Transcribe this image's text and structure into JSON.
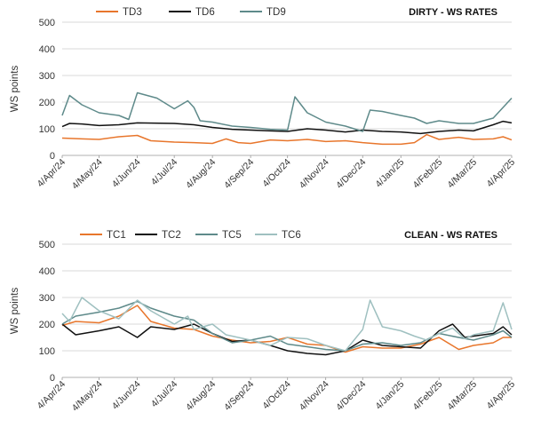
{
  "chart_data": [
    {
      "type": "line",
      "title": "DIRTY - WS RATES",
      "ylabel": "WS points",
      "xlabel": "",
      "ylim": [
        0,
        500
      ],
      "yticks": [
        0,
        100,
        200,
        300,
        400,
        500
      ],
      "x_start": "4/Apr/24",
      "x_end": "4/Apr/25",
      "x_tick_labels": [
        "4/Apr/24",
        "4/May/24",
        "4/Jun/24",
        "4/Jul/24",
        "4/Aug/24",
        "4/Sep/24",
        "4/Oct/24",
        "4/Nov/24",
        "4/Dec/24",
        "4/Jan/25",
        "4/Feb/25",
        "4/Mar/25",
        "4/Apr/25"
      ],
      "legend_position": "top-left",
      "grid": true,
      "series": [
        {
          "name": "TD3",
          "color": "#e8762c",
          "points": [
            [
              "4/Apr/24",
              65
            ],
            [
              "20/Apr/24",
              62
            ],
            [
              "4/May/24",
              60
            ],
            [
              "20/May/24",
              70
            ],
            [
              "4/Jun/24",
              75
            ],
            [
              "15/Jun/24",
              55
            ],
            [
              "4/Jul/24",
              50
            ],
            [
              "20/Jul/24",
              48
            ],
            [
              "4/Aug/24",
              45
            ],
            [
              "15/Aug/24",
              62
            ],
            [
              "25/Aug/24",
              48
            ],
            [
              "4/Sep/24",
              45
            ],
            [
              "20/Sep/24",
              58
            ],
            [
              "4/Oct/24",
              55
            ],
            [
              "20/Oct/24",
              60
            ],
            [
              "4/Nov/24",
              52
            ],
            [
              "20/Nov/24",
              55
            ],
            [
              "4/Dec/24",
              48
            ],
            [
              "20/Dec/24",
              42
            ],
            [
              "4/Jan/25",
              42
            ],
            [
              "15/Jan/25",
              48
            ],
            [
              "25/Jan/25",
              78
            ],
            [
              "4/Feb/25",
              60
            ],
            [
              "20/Feb/25",
              68
            ],
            [
              "4/Mar/25",
              60
            ],
            [
              "20/Mar/25",
              62
            ],
            [
              "28/Mar/25",
              70
            ],
            [
              "4/Apr/25",
              58
            ]
          ]
        },
        {
          "name": "TD6",
          "color": "#111111",
          "points": [
            [
              "4/Apr/24",
              108
            ],
            [
              "10/Apr/24",
              120
            ],
            [
              "20/Apr/24",
              118
            ],
            [
              "4/May/24",
              112
            ],
            [
              "20/May/24",
              115
            ],
            [
              "4/Jun/24",
              122
            ],
            [
              "4/Jul/24",
              120
            ],
            [
              "20/Jul/24",
              115
            ],
            [
              "4/Aug/24",
              105
            ],
            [
              "20/Aug/24",
              98
            ],
            [
              "4/Sep/24",
              95
            ],
            [
              "20/Sep/24",
              92
            ],
            [
              "4/Oct/24",
              90
            ],
            [
              "20/Oct/24",
              100
            ],
            [
              "4/Nov/24",
              95
            ],
            [
              "20/Nov/24",
              88
            ],
            [
              "4/Dec/24",
              95
            ],
            [
              "20/Dec/24",
              90
            ],
            [
              "4/Jan/25",
              88
            ],
            [
              "20/Jan/25",
              82
            ],
            [
              "4/Feb/25",
              90
            ],
            [
              "20/Feb/25",
              95
            ],
            [
              "4/Mar/25",
              92
            ],
            [
              "20/Mar/25",
              115
            ],
            [
              "28/Mar/25",
              128
            ],
            [
              "4/Apr/25",
              122
            ]
          ]
        },
        {
          "name": "TD9",
          "color": "#5e8a8a",
          "points": [
            [
              "4/Apr/24",
              150
            ],
            [
              "10/Apr/24",
              225
            ],
            [
              "20/Apr/24",
              190
            ],
            [
              "4/May/24",
              160
            ],
            [
              "20/May/24",
              150
            ],
            [
              "28/May/24",
              135
            ],
            [
              "4/Jun/24",
              235
            ],
            [
              "20/Jun/24",
              215
            ],
            [
              "4/Jul/24",
              175
            ],
            [
              "15/Jul/24",
              205
            ],
            [
              "20/Jul/24",
              180
            ],
            [
              "25/Jul/24",
              130
            ],
            [
              "4/Aug/24",
              125
            ],
            [
              "20/Aug/24",
              110
            ],
            [
              "4/Sep/24",
              105
            ],
            [
              "20/Sep/24",
              98
            ],
            [
              "4/Oct/24",
              95
            ],
            [
              "10/Oct/24",
              220
            ],
            [
              "20/Oct/24",
              160
            ],
            [
              "4/Nov/24",
              125
            ],
            [
              "20/Nov/24",
              110
            ],
            [
              "4/Dec/24",
              90
            ],
            [
              "10/Dec/24",
              170
            ],
            [
              "20/Dec/24",
              165
            ],
            [
              "4/Jan/25",
              150
            ],
            [
              "15/Jan/25",
              140
            ],
            [
              "25/Jan/25",
              120
            ],
            [
              "4/Feb/25",
              130
            ],
            [
              "20/Feb/25",
              120
            ],
            [
              "4/Mar/25",
              120
            ],
            [
              "20/Mar/25",
              140
            ],
            [
              "28/Mar/25",
              180
            ],
            [
              "4/Apr/25",
              215
            ]
          ]
        }
      ]
    },
    {
      "type": "line",
      "title": "CLEAN - WS RATES",
      "ylabel": "WS points",
      "xlabel": "",
      "ylim": [
        0,
        500
      ],
      "yticks": [
        0,
        100,
        200,
        300,
        400,
        500
      ],
      "x_start": "4/Apr/24",
      "x_end": "4/Apr/25",
      "x_tick_labels": [
        "4/Apr/24",
        "4/May/24",
        "4/Jun/24",
        "4/Jul/24",
        "4/Aug/24",
        "4/Sep/24",
        "4/Oct/24",
        "4/Nov/24",
        "4/Dec/24",
        "4/Jan/25",
        "4/Feb/25",
        "4/Mar/25",
        "4/Apr/25"
      ],
      "legend_position": "top-left",
      "grid": true,
      "series": [
        {
          "name": "TC1",
          "color": "#e8762c",
          "points": [
            [
              "4/Apr/24",
              195
            ],
            [
              "15/Apr/24",
              210
            ],
            [
              "4/May/24",
              205
            ],
            [
              "20/May/24",
              230
            ],
            [
              "4/Jun/24",
              270
            ],
            [
              "15/Jun/24",
              210
            ],
            [
              "4/Jul/24",
              185
            ],
            [
              "20/Jul/24",
              180
            ],
            [
              "4/Aug/24",
              155
            ],
            [
              "20/Aug/24",
              140
            ],
            [
              "4/Sep/24",
              130
            ],
            [
              "20/Sep/24",
              135
            ],
            [
              "4/Oct/24",
              150
            ],
            [
              "20/Oct/24",
              125
            ],
            [
              "4/Nov/24",
              120
            ],
            [
              "20/Nov/24",
              95
            ],
            [
              "4/Dec/24",
              115
            ],
            [
              "20/Dec/24",
              110
            ],
            [
              "4/Jan/25",
              110
            ],
            [
              "20/Jan/25",
              125
            ],
            [
              "4/Feb/25",
              150
            ],
            [
              "20/Feb/25",
              105
            ],
            [
              "4/Mar/25",
              120
            ],
            [
              "20/Mar/25",
              130
            ],
            [
              "28/Mar/25",
              150
            ],
            [
              "4/Apr/25",
              150
            ]
          ]
        },
        {
          "name": "TC2",
          "color": "#111111",
          "points": [
            [
              "4/Apr/24",
              200
            ],
            [
              "15/Apr/24",
              160
            ],
            [
              "4/May/24",
              175
            ],
            [
              "20/May/24",
              190
            ],
            [
              "4/Jun/24",
              150
            ],
            [
              "15/Jun/24",
              190
            ],
            [
              "4/Jul/24",
              180
            ],
            [
              "20/Jul/24",
              200
            ],
            [
              "4/Aug/24",
              165
            ],
            [
              "20/Aug/24",
              135
            ],
            [
              "4/Sep/24",
              140
            ],
            [
              "20/Sep/24",
              120
            ],
            [
              "4/Oct/24",
              100
            ],
            [
              "20/Oct/24",
              90
            ],
            [
              "4/Nov/24",
              85
            ],
            [
              "20/Nov/24",
              100
            ],
            [
              "4/Dec/24",
              140
            ],
            [
              "20/Dec/24",
              120
            ],
            [
              "4/Jan/25",
              115
            ],
            [
              "20/Jan/25",
              110
            ],
            [
              "4/Feb/25",
              175
            ],
            [
              "15/Feb/25",
              200
            ],
            [
              "25/Feb/25",
              150
            ],
            [
              "4/Mar/25",
              155
            ],
            [
              "20/Mar/25",
              165
            ],
            [
              "28/Mar/25",
              190
            ],
            [
              "4/Apr/25",
              160
            ]
          ]
        },
        {
          "name": "TC5",
          "color": "#5e8a8a",
          "points": [
            [
              "4/Apr/24",
              200
            ],
            [
              "15/Apr/24",
              230
            ],
            [
              "4/May/24",
              245
            ],
            [
              "20/May/24",
              260
            ],
            [
              "4/Jun/24",
              285
            ],
            [
              "15/Jun/24",
              260
            ],
            [
              "4/Jul/24",
              230
            ],
            [
              "20/Jul/24",
              215
            ],
            [
              "4/Aug/24",
              165
            ],
            [
              "20/Aug/24",
              130
            ],
            [
              "4/Sep/24",
              140
            ],
            [
              "20/Sep/24",
              155
            ],
            [
              "4/Oct/24",
              125
            ],
            [
              "20/Oct/24",
              115
            ],
            [
              "4/Nov/24",
              105
            ],
            [
              "20/Nov/24",
              100
            ],
            [
              "4/Dec/24",
              125
            ],
            [
              "20/Dec/24",
              130
            ],
            [
              "4/Jan/25",
              120
            ],
            [
              "20/Jan/25",
              130
            ],
            [
              "4/Feb/25",
              165
            ],
            [
              "20/Feb/25",
              150
            ],
            [
              "4/Mar/25",
              140
            ],
            [
              "20/Mar/25",
              160
            ],
            [
              "28/Mar/25",
              175
            ],
            [
              "4/Apr/25",
              150
            ]
          ]
        },
        {
          "name": "TC6",
          "color": "#9fc0c0",
          "points": [
            [
              "4/Apr/24",
              240
            ],
            [
              "10/Apr/24",
              210
            ],
            [
              "20/Apr/24",
              300
            ],
            [
              "4/May/24",
              250
            ],
            [
              "20/May/24",
              220
            ],
            [
              "4/Jun/24",
              290
            ],
            [
              "15/Jun/24",
              250
            ],
            [
              "4/Jul/24",
              200
            ],
            [
              "15/Jul/24",
              230
            ],
            [
              "20/Jul/24",
              180
            ],
            [
              "4/Aug/24",
              200
            ],
            [
              "15/Aug/24",
              160
            ],
            [
              "4/Sep/24",
              140
            ],
            [
              "20/Sep/24",
              120
            ],
            [
              "4/Oct/24",
              150
            ],
            [
              "20/Oct/24",
              145
            ],
            [
              "4/Nov/24",
              120
            ],
            [
              "20/Nov/24",
              100
            ],
            [
              "4/Dec/24",
              180
            ],
            [
              "10/Dec/24",
              290
            ],
            [
              "20/Dec/24",
              190
            ],
            [
              "4/Jan/25",
              175
            ],
            [
              "15/Jan/25",
              155
            ],
            [
              "25/Jan/25",
              140
            ],
            [
              "4/Feb/25",
              165
            ],
            [
              "15/Feb/25",
              185
            ],
            [
              "25/Feb/25",
              145
            ],
            [
              "4/Mar/25",
              160
            ],
            [
              "20/Mar/25",
              175
            ],
            [
              "28/Mar/25",
              280
            ],
            [
              "4/Apr/25",
              180
            ]
          ]
        }
      ]
    }
  ]
}
